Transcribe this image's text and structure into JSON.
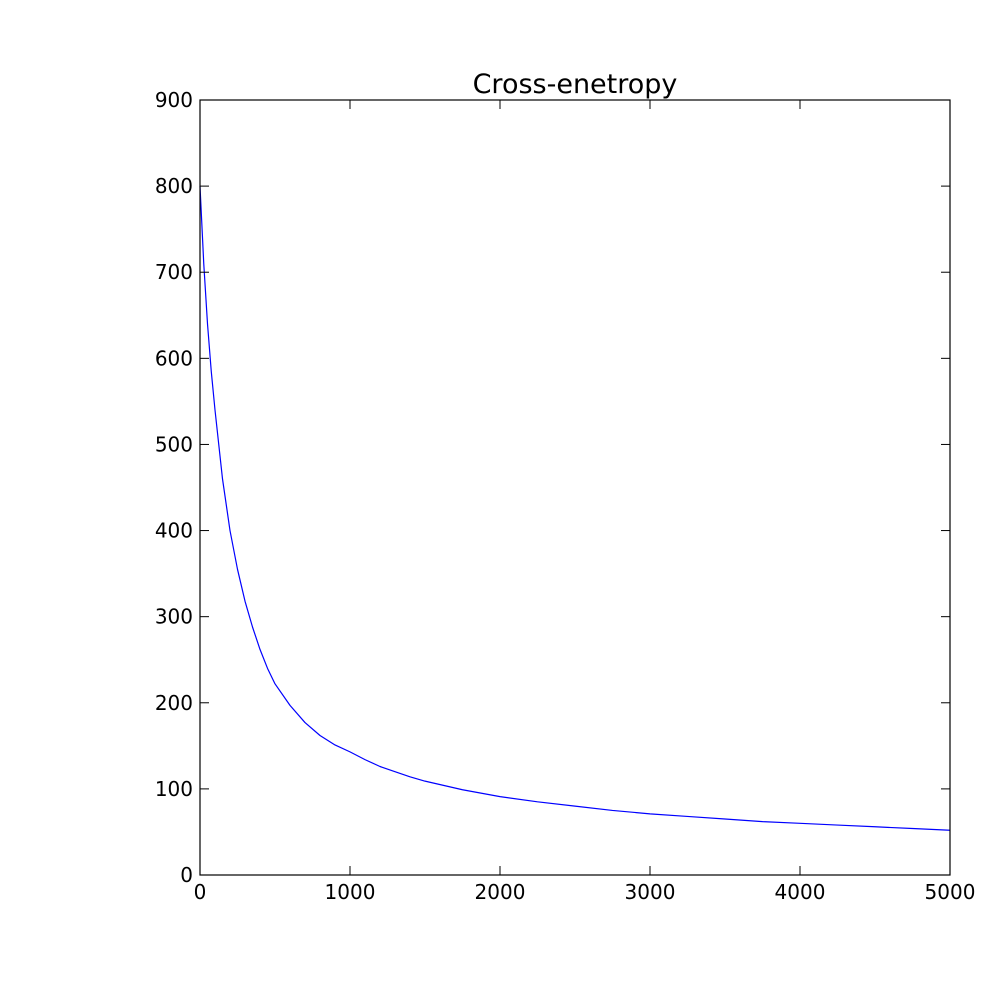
{
  "chart_data": {
    "type": "line",
    "title": "Cross-enetropy",
    "xlabel": "",
    "ylabel": "",
    "xlim": [
      0,
      5000
    ],
    "ylim": [
      0,
      900
    ],
    "xticks": [
      0,
      1000,
      2000,
      3000,
      4000,
      5000
    ],
    "yticks": [
      0,
      100,
      200,
      300,
      400,
      500,
      600,
      700,
      800,
      900
    ],
    "grid": false,
    "series": [
      {
        "color": "#0000ff",
        "x": [
          0,
          25,
          50,
          75,
          100,
          150,
          200,
          250,
          300,
          350,
          400,
          450,
          500,
          600,
          700,
          800,
          900,
          1000,
          1100,
          1200,
          1300,
          1400,
          1500,
          1750,
          2000,
          2250,
          2500,
          2750,
          3000,
          3250,
          3500,
          3750,
          4000,
          4250,
          4500,
          4750,
          5000
        ],
        "y": [
          800,
          710,
          640,
          585,
          540,
          460,
          400,
          355,
          318,
          288,
          262,
          240,
          222,
          197,
          177,
          162,
          151,
          143,
          134,
          126,
          120,
          114,
          109,
          99,
          91,
          85,
          80,
          75,
          71,
          68,
          65,
          62,
          60,
          58,
          56,
          54,
          52
        ]
      }
    ]
  }
}
